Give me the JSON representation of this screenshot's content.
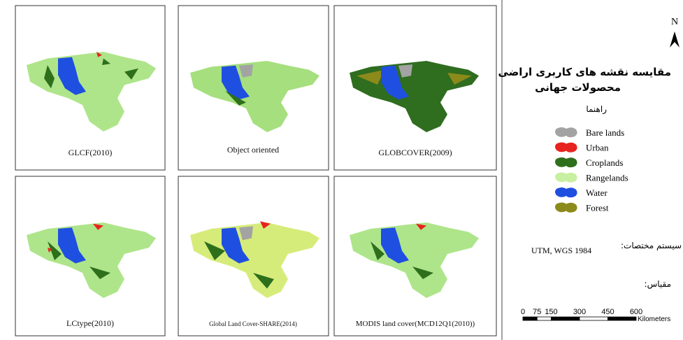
{
  "panels": [
    {
      "caption": "GLCF(2010)"
    },
    {
      "caption": "Object oriented"
    },
    {
      "caption": "GLOBCOVER(2009)"
    },
    {
      "caption": "LCtype(2010)"
    },
    {
      "caption": "Global Land Cover-SHARE(2014)"
    },
    {
      "caption": "MODIS land cover(MCD12Q1(2010))"
    }
  ],
  "north": "N",
  "title_lines": [
    "مقایسه نقشه های کاربری اراضی",
    "محصولات جهانی"
  ],
  "legend_title": "راهنما",
  "legend": [
    {
      "name": "Bare lands",
      "color": "#a3a3a3"
    },
    {
      "name": "Urban",
      "color": "#e8231f"
    },
    {
      "name": "Croplands",
      "color": "#2e6f1c"
    },
    {
      "name": "Rangelands",
      "color": "#c9efa0"
    },
    {
      "name": "Water",
      "color": "#1f4fe0"
    },
    {
      "name": "Forest",
      "color": "#8c8a1a"
    }
  ],
  "coordinate_label": "سیستم مختصات:",
  "coordinate_system": "UTM, WGS 1984",
  "scale_label": "مقیاس:",
  "scale": {
    "ticks": [
      0,
      75,
      150,
      300,
      450,
      600
    ],
    "unit": "Kilometers"
  }
}
